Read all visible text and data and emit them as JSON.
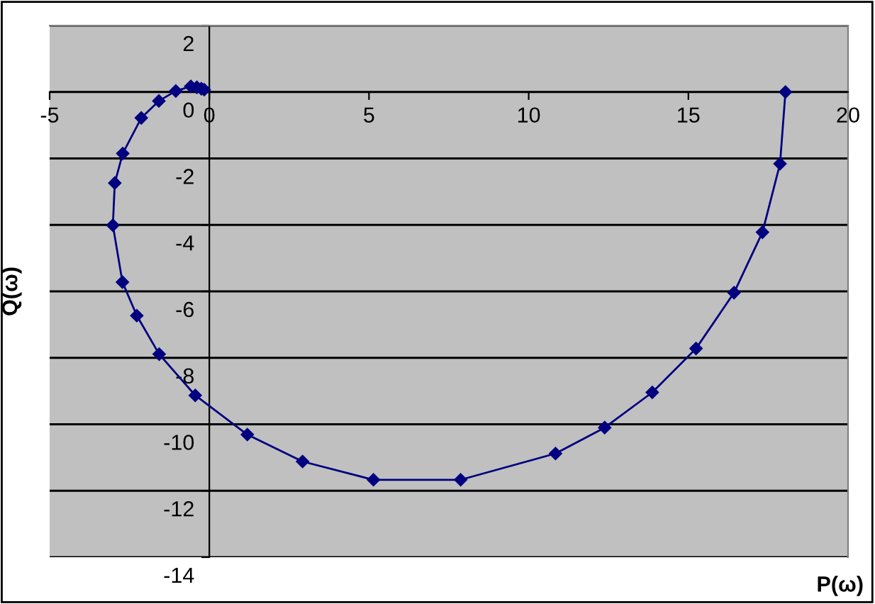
{
  "chart_data": {
    "type": "line",
    "xlabel": "P(ω)",
    "ylabel": "Q(ω)",
    "series": [
      {
        "color": "#000080",
        "x": [
          18.04,
          17.87,
          17.32,
          16.43,
          15.24,
          13.87,
          12.38,
          10.84,
          7.87,
          5.14,
          2.92,
          1.19,
          -0.44,
          -1.57,
          -2.27,
          -2.72,
          -3.02,
          -2.96,
          -2.71,
          -2.13,
          -1.58,
          -1.05,
          -0.58,
          -0.39,
          -0.25,
          -0.16
        ],
        "values": [
          0,
          -2.16,
          -4.22,
          -6.04,
          -7.72,
          -9.04,
          -10.1,
          -10.88,
          -11.67,
          -11.67,
          -11.12,
          -10.31,
          -9.13,
          -7.89,
          -6.73,
          -5.72,
          -4.01,
          -2.74,
          -1.85,
          -0.78,
          -0.27,
          0.03,
          0.17,
          0.14,
          0.1,
          0.07
        ]
      }
    ],
    "xlim": [
      -5,
      20
    ],
    "xticks": [
      -5,
      0,
      5,
      10,
      15,
      20
    ],
    "ylim": [
      -14,
      2
    ],
    "yticks": [
      -14,
      -12,
      -10,
      -8,
      -6,
      -4,
      -2,
      0,
      2
    ],
    "grid": "y",
    "marker": "diamond",
    "line_style": "solid",
    "legend": false
  }
}
